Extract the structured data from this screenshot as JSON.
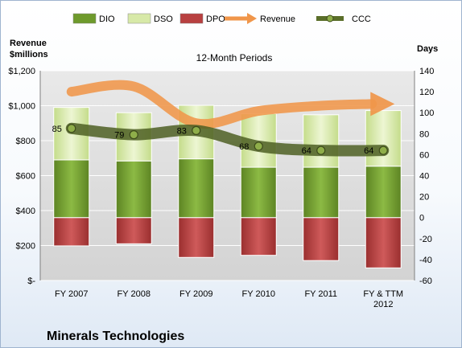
{
  "chart_data": {
    "type": "bar",
    "title": "12-Month Periods",
    "company": "Minerals Technologies",
    "left_axis_label": [
      "Revenue",
      "$millions"
    ],
    "right_axis_label": "Days",
    "categories": [
      [
        "FY 2007"
      ],
      [
        "FY 2008"
      ],
      [
        "FY 2009"
      ],
      [
        "FY 2010"
      ],
      [
        "FY 2011"
      ],
      [
        "FY & TTM",
        "2012"
      ]
    ],
    "left_axis": {
      "min": 0,
      "max": 1200,
      "step": 200,
      "tick_labels": [
        "$-",
        "$200",
        "$400",
        "$600",
        "$800",
        "$1,000",
        "$1,200"
      ]
    },
    "right_axis": {
      "min": -60,
      "max": 140,
      "step": 20,
      "tick_labels": [
        "-60",
        "-40",
        "-20",
        "0",
        "20",
        "40",
        "60",
        "80",
        "100",
        "120",
        "140"
      ]
    },
    "gridlines": true,
    "legend_position": "top",
    "legend": [
      {
        "key": "dio",
        "label": "DIO",
        "type": "bar",
        "color": "#6e9a2c"
      },
      {
        "key": "dso",
        "label": "DSO",
        "type": "bar",
        "color": "#d7e9a8"
      },
      {
        "key": "dpo",
        "label": "DPO",
        "type": "bar",
        "color": "#b84040"
      },
      {
        "key": "revenue",
        "label": "Revenue",
        "type": "arrow",
        "color": "#f0964a"
      },
      {
        "key": "ccc",
        "label": "CCC",
        "type": "line-marker",
        "color": "#5a6e2a"
      }
    ],
    "series": {
      "dio": [
        55,
        54,
        56,
        48,
        48,
        49
      ],
      "dso": [
        50,
        46,
        51,
        51,
        50,
        53
      ],
      "dpo": [
        -27,
        -25,
        -38,
        -36,
        -41,
        -48
      ],
      "ccc": [
        85,
        79,
        83,
        68,
        64,
        64
      ],
      "revenue": [
        1080,
        1110,
        900,
        970,
        1000,
        1010
      ]
    },
    "ccc_data_labels": [
      "85",
      "79",
      "83",
      "68",
      "64",
      "64"
    ]
  }
}
